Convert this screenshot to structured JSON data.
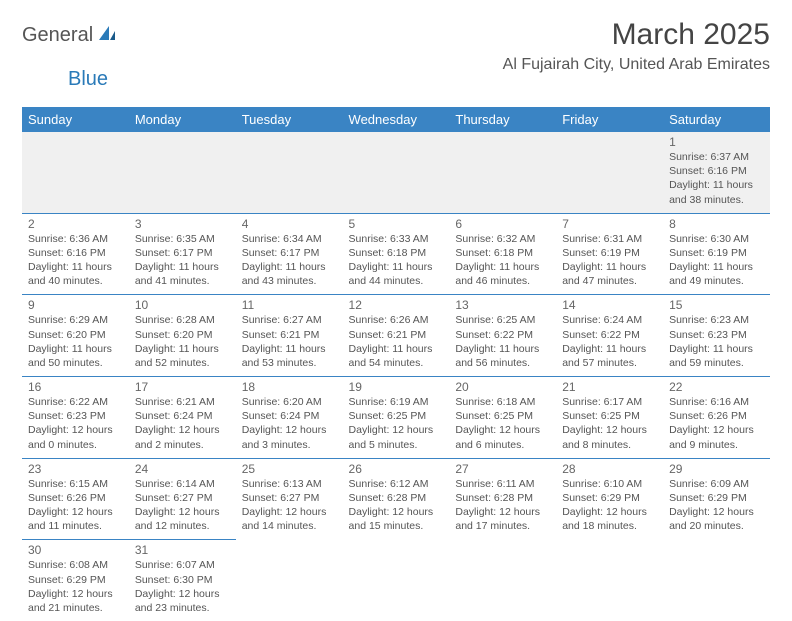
{
  "logo": {
    "part1": "General",
    "part2": "Blue"
  },
  "title": "March 2025",
  "location": "Al Fujairah City, United Arab Emirates",
  "colors": {
    "header_bg": "#3a84c4",
    "header_text": "#ffffff",
    "border": "#3a84c4",
    "text": "#555555",
    "title": "#444444",
    "logo_accent": "#2a7ab8"
  },
  "day_headers": [
    "Sunday",
    "Monday",
    "Tuesday",
    "Wednesday",
    "Thursday",
    "Friday",
    "Saturday"
  ],
  "weeks": [
    [
      null,
      null,
      null,
      null,
      null,
      null,
      {
        "n": "1",
        "sr": "6:37 AM",
        "ss": "6:16 PM",
        "dl": "11 hours and 38 minutes."
      }
    ],
    [
      {
        "n": "2",
        "sr": "6:36 AM",
        "ss": "6:16 PM",
        "dl": "11 hours and 40 minutes."
      },
      {
        "n": "3",
        "sr": "6:35 AM",
        "ss": "6:17 PM",
        "dl": "11 hours and 41 minutes."
      },
      {
        "n": "4",
        "sr": "6:34 AM",
        "ss": "6:17 PM",
        "dl": "11 hours and 43 minutes."
      },
      {
        "n": "5",
        "sr": "6:33 AM",
        "ss": "6:18 PM",
        "dl": "11 hours and 44 minutes."
      },
      {
        "n": "6",
        "sr": "6:32 AM",
        "ss": "6:18 PM",
        "dl": "11 hours and 46 minutes."
      },
      {
        "n": "7",
        "sr": "6:31 AM",
        "ss": "6:19 PM",
        "dl": "11 hours and 47 minutes."
      },
      {
        "n": "8",
        "sr": "6:30 AM",
        "ss": "6:19 PM",
        "dl": "11 hours and 49 minutes."
      }
    ],
    [
      {
        "n": "9",
        "sr": "6:29 AM",
        "ss": "6:20 PM",
        "dl": "11 hours and 50 minutes."
      },
      {
        "n": "10",
        "sr": "6:28 AM",
        "ss": "6:20 PM",
        "dl": "11 hours and 52 minutes."
      },
      {
        "n": "11",
        "sr": "6:27 AM",
        "ss": "6:21 PM",
        "dl": "11 hours and 53 minutes."
      },
      {
        "n": "12",
        "sr": "6:26 AM",
        "ss": "6:21 PM",
        "dl": "11 hours and 54 minutes."
      },
      {
        "n": "13",
        "sr": "6:25 AM",
        "ss": "6:22 PM",
        "dl": "11 hours and 56 minutes."
      },
      {
        "n": "14",
        "sr": "6:24 AM",
        "ss": "6:22 PM",
        "dl": "11 hours and 57 minutes."
      },
      {
        "n": "15",
        "sr": "6:23 AM",
        "ss": "6:23 PM",
        "dl": "11 hours and 59 minutes."
      }
    ],
    [
      {
        "n": "16",
        "sr": "6:22 AM",
        "ss": "6:23 PM",
        "dl": "12 hours and 0 minutes."
      },
      {
        "n": "17",
        "sr": "6:21 AM",
        "ss": "6:24 PM",
        "dl": "12 hours and 2 minutes."
      },
      {
        "n": "18",
        "sr": "6:20 AM",
        "ss": "6:24 PM",
        "dl": "12 hours and 3 minutes."
      },
      {
        "n": "19",
        "sr": "6:19 AM",
        "ss": "6:25 PM",
        "dl": "12 hours and 5 minutes."
      },
      {
        "n": "20",
        "sr": "6:18 AM",
        "ss": "6:25 PM",
        "dl": "12 hours and 6 minutes."
      },
      {
        "n": "21",
        "sr": "6:17 AM",
        "ss": "6:25 PM",
        "dl": "12 hours and 8 minutes."
      },
      {
        "n": "22",
        "sr": "6:16 AM",
        "ss": "6:26 PM",
        "dl": "12 hours and 9 minutes."
      }
    ],
    [
      {
        "n": "23",
        "sr": "6:15 AM",
        "ss": "6:26 PM",
        "dl": "12 hours and 11 minutes."
      },
      {
        "n": "24",
        "sr": "6:14 AM",
        "ss": "6:27 PM",
        "dl": "12 hours and 12 minutes."
      },
      {
        "n": "25",
        "sr": "6:13 AM",
        "ss": "6:27 PM",
        "dl": "12 hours and 14 minutes."
      },
      {
        "n": "26",
        "sr": "6:12 AM",
        "ss": "6:28 PM",
        "dl": "12 hours and 15 minutes."
      },
      {
        "n": "27",
        "sr": "6:11 AM",
        "ss": "6:28 PM",
        "dl": "12 hours and 17 minutes."
      },
      {
        "n": "28",
        "sr": "6:10 AM",
        "ss": "6:29 PM",
        "dl": "12 hours and 18 minutes."
      },
      {
        "n": "29",
        "sr": "6:09 AM",
        "ss": "6:29 PM",
        "dl": "12 hours and 20 minutes."
      }
    ],
    [
      {
        "n": "30",
        "sr": "6:08 AM",
        "ss": "6:29 PM",
        "dl": "12 hours and 21 minutes."
      },
      {
        "n": "31",
        "sr": "6:07 AM",
        "ss": "6:30 PM",
        "dl": "12 hours and 23 minutes."
      },
      null,
      null,
      null,
      null,
      null
    ]
  ],
  "labels": {
    "sunrise": "Sunrise:",
    "sunset": "Sunset:",
    "daylight": "Daylight:"
  }
}
